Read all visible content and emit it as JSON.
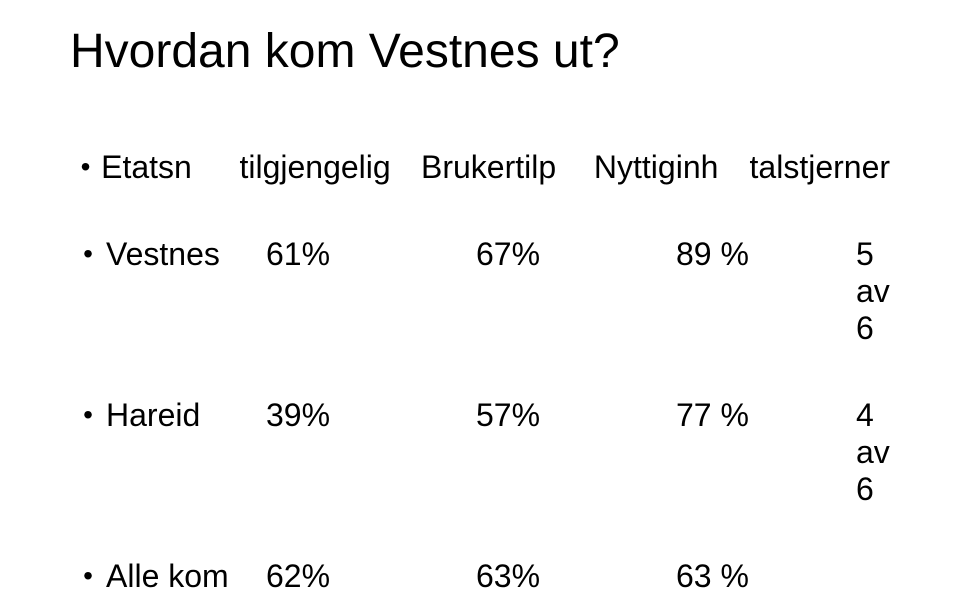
{
  "title": "Hvordan kom Vestnes ut?",
  "bullet": "•",
  "header": {
    "label": "Etatsn",
    "col1": "tilgjengelig",
    "col2": "Brukertilp",
    "col3": "Nyttiginh",
    "col4": "talstjerner"
  },
  "rows": [
    {
      "label": "Vestnes",
      "col1": "61%",
      "col2": "67%",
      "col3": "89 %",
      "col4": "5 av 6"
    },
    {
      "label": "Hareid",
      "col1": "39%",
      "col2": "57%",
      "col3": "77 %",
      "col4": "4 av 6"
    },
    {
      "label": "Alle kom",
      "col1": "62%",
      "col2": "63%",
      "col3": "63 %",
      "col4": ""
    }
  ]
}
